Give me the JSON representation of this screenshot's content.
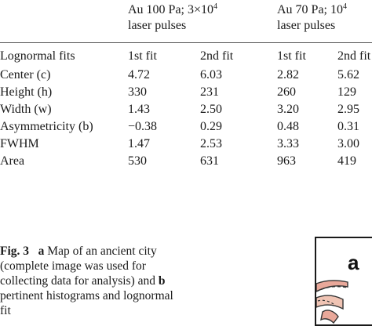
{
  "table": {
    "groups": [
      {
        "line1": "Au 100 Pa; 3×10",
        "sup": "4",
        "line2": "laser pulses"
      },
      {
        "line1": "Au 70 Pa; 10",
        "sup": "4",
        "line2": "laser pulses"
      }
    ],
    "columns": [
      "Lognormal fits",
      "1st fit",
      "2nd fit",
      "1st fit",
      "2nd fit"
    ],
    "rows": [
      [
        "Center (c)",
        "4.72",
        "6.03",
        "2.82",
        "5.62"
      ],
      [
        "Height (h)",
        "330",
        "231",
        "260",
        "129"
      ],
      [
        "Width (w)",
        "1.43",
        "2.50",
        "3.20",
        "2.95"
      ],
      [
        "Asymmetricity (b)",
        "−0.38",
        "0.29",
        "0.48",
        "0.31"
      ],
      [
        "FWHM",
        "1.47",
        "2.53",
        "3.33",
        "3.00"
      ],
      [
        "Area",
        "530",
        "631",
        "963",
        "419"
      ]
    ]
  },
  "caption": {
    "figure_label": "Fig. 3",
    "part_a": "a",
    "text_a": "Map of an ancient city (complete image was used for collecting data for analysis) and",
    "part_b": "b",
    "text_b": "pertinent histograms and lognormal fit"
  },
  "figure": {
    "panel_label": "a"
  }
}
